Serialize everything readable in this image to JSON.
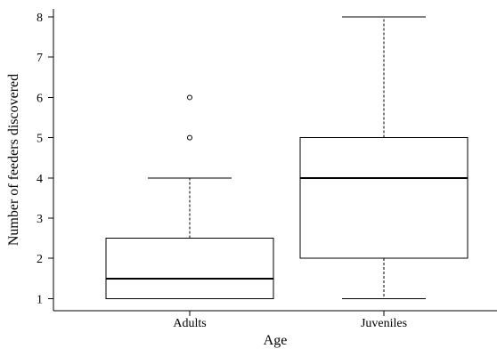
{
  "chart_data": {
    "type": "boxplot",
    "title": "",
    "xlabel": "Age",
    "ylabel": "Number of feeders discovered",
    "categories": [
      "Adults",
      "Juveniles"
    ],
    "ylim": [
      0.7,
      8.2
    ],
    "y_ticks": [
      1,
      2,
      3,
      4,
      5,
      6,
      7,
      8
    ],
    "y_tick_labels": [
      "1",
      "2",
      "3",
      "4",
      "5",
      "6",
      "7",
      "8"
    ],
    "grid": false,
    "legend": "none",
    "boxes": [
      {
        "category": "Adults",
        "min": 1,
        "q1": 1,
        "median": 1.5,
        "q3": 2.5,
        "max": 4,
        "outliers": [
          5,
          6
        ]
      },
      {
        "category": "Juveniles",
        "min": 1,
        "q1": 2,
        "median": 4,
        "q3": 5,
        "max": 8,
        "outliers": []
      }
    ]
  }
}
